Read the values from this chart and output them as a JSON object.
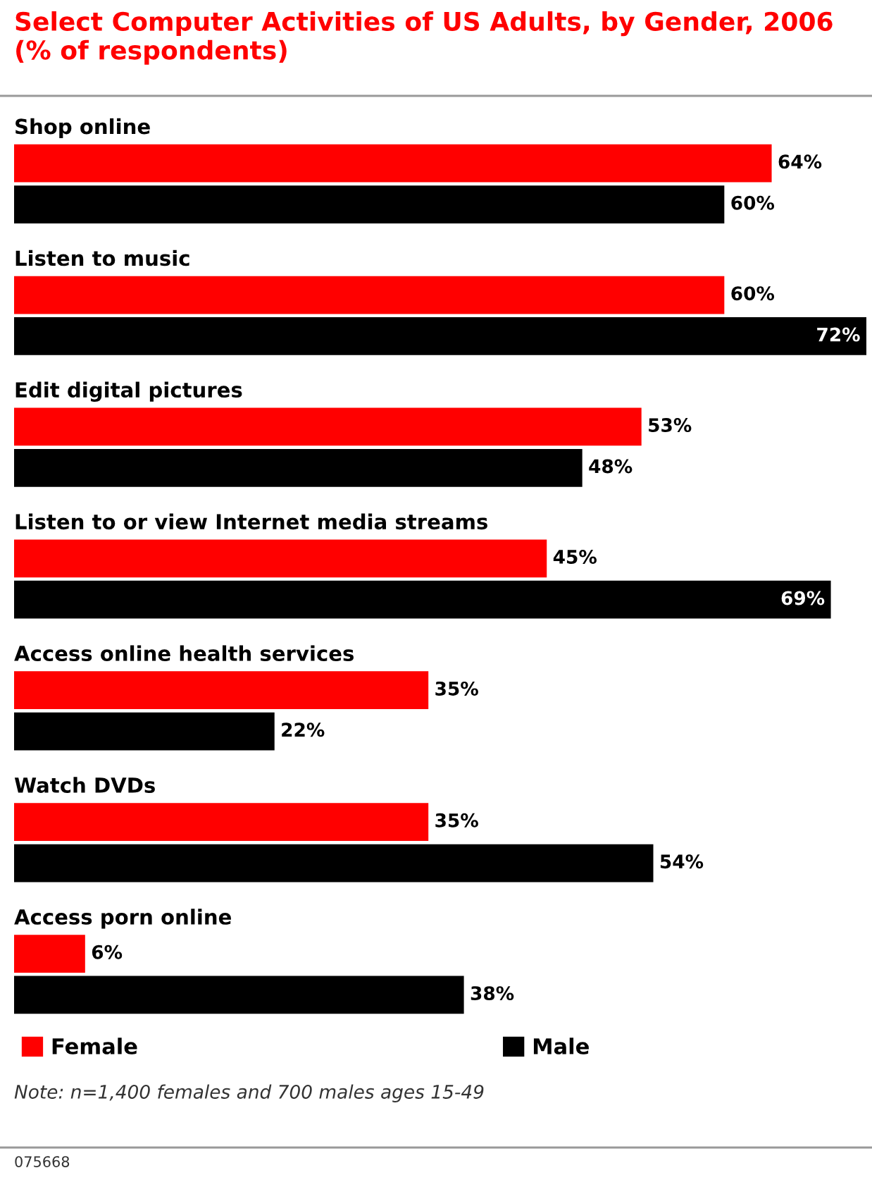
{
  "chart_data": {
    "type": "bar",
    "orientation": "horizontal",
    "title": "Select Computer Activities of US Adults, by Gender, 2006 (% of respondents)",
    "categories": [
      "Shop online",
      "Listen to music",
      "Edit digital pictures",
      "Listen to or view Internet media streams",
      "Access online health services",
      "Watch DVDs",
      "Access porn online"
    ],
    "series": [
      {
        "name": "Female",
        "color": "#ff0000",
        "values": [
          64,
          60,
          53,
          45,
          35,
          35,
          6
        ],
        "value_labels": [
          "64%",
          "60%",
          "53%",
          "45%",
          "35%",
          "35%",
          "6%"
        ]
      },
      {
        "name": "Male",
        "color": "#000000",
        "values": [
          60,
          72,
          48,
          69,
          22,
          54,
          38
        ],
        "value_labels": [
          "60%",
          "72%",
          "48%",
          "69%",
          "22%",
          "54%",
          "38%"
        ]
      }
    ],
    "legend": "bottom",
    "annotations": [
      "Note: n=1,400 females and 700 males ages 15-49",
      "075668"
    ]
  }
}
